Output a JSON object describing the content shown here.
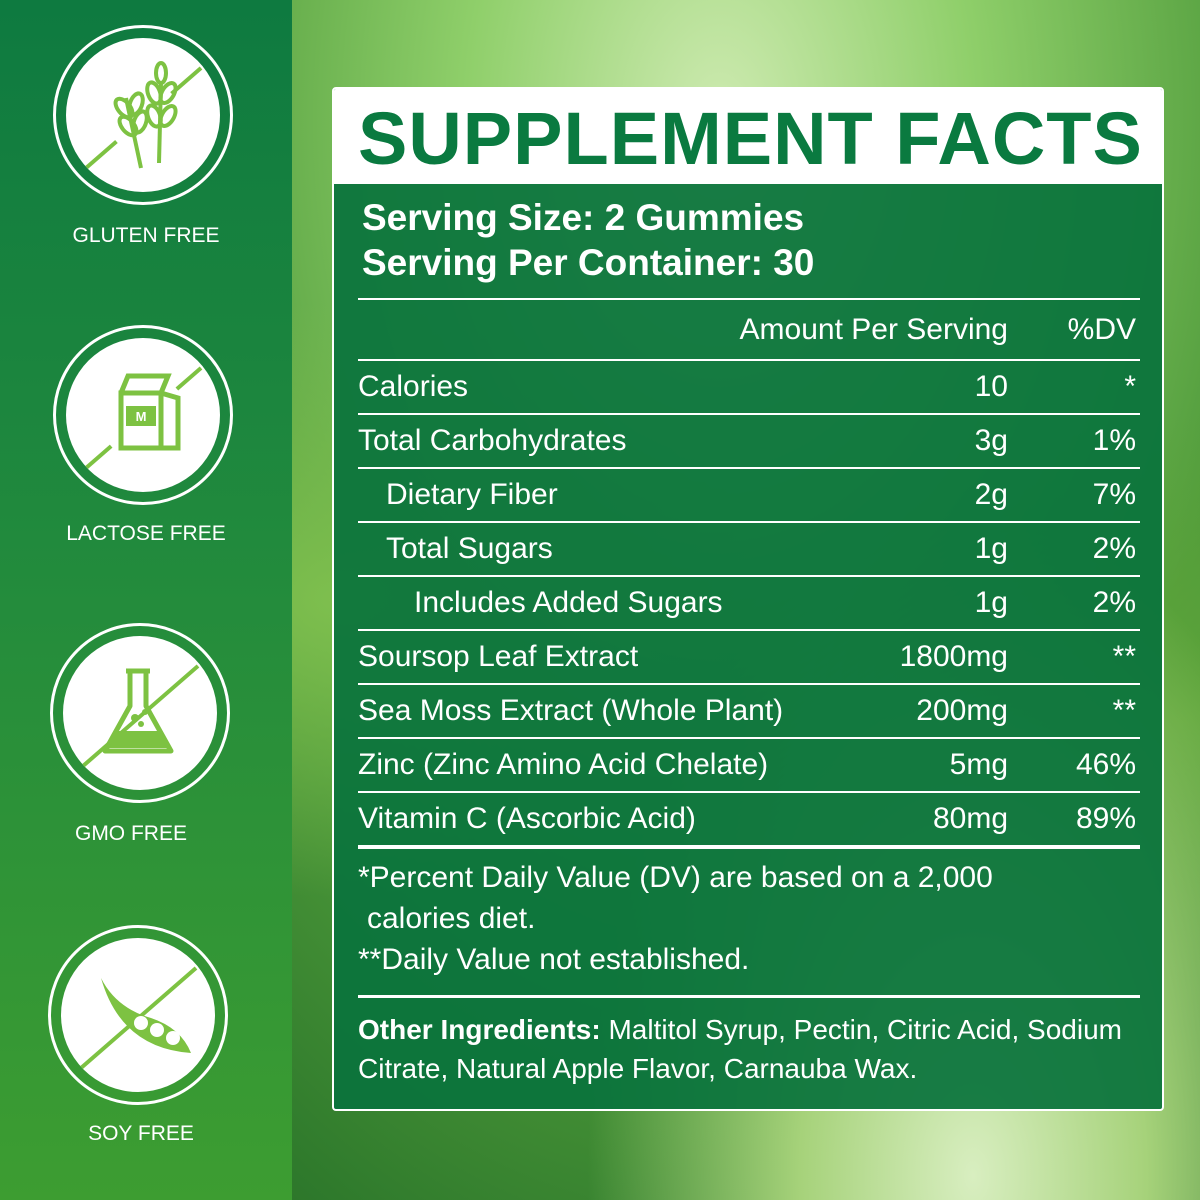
{
  "badges": [
    {
      "icon": "wheat-icon",
      "label": "GLUTEN FREE"
    },
    {
      "icon": "milk-carton-icon",
      "label": "LACTOSE FREE",
      "carton_letter": "M"
    },
    {
      "icon": "flask-icon",
      "label": "GMO FREE"
    },
    {
      "icon": "soybean-pod-icon",
      "label": "SOY FREE"
    }
  ],
  "colors": {
    "brand_green": "#0a7a40",
    "accent_light_green": "#7dc242"
  },
  "facts": {
    "title": "SUPPLEMENT FACTS",
    "serving_size": "Serving Size: 2 Gummies",
    "servings_per_container": "Serving Per Container: 30",
    "col_amount": "Amount Per Serving",
    "col_dv": "%DV",
    "rows": [
      {
        "name": "Calories",
        "amount": "10",
        "dv": "*"
      },
      {
        "name": "Total Carbohydrates",
        "amount": "3g",
        "dv": "1%"
      },
      {
        "name": "Dietary Fiber",
        "amount": "2g",
        "dv": "7%"
      },
      {
        "name": "Total Sugars",
        "amount": "1g",
        "dv": "2%"
      },
      {
        "name": "Includes Added Sugars",
        "amount": "1g",
        "dv": "2%"
      },
      {
        "name": "Soursop Leaf Extract",
        "amount": "1800mg",
        "dv": "**"
      },
      {
        "name": "Sea Moss Extract (Whole Plant)",
        "amount": "200mg",
        "dv": "**"
      },
      {
        "name": "Zinc (Zinc Amino Acid Chelate)",
        "amount": "5mg",
        "dv": "46%"
      },
      {
        "name": "Vitamin C (Ascorbic Acid)",
        "amount": "80mg",
        "dv": "89%"
      }
    ],
    "footnote1a": "*Percent Daily Value (DV) are based on a 2,000",
    "footnote1b": "calories diet.",
    "footnote2": "**Daily Value not established.",
    "other_label": "Other Ingredients:",
    "other_text": " Maltitol Syrup, Pectin, Citric Acid, Sodium Citrate, Natural Apple Flavor, Carnauba Wax."
  }
}
